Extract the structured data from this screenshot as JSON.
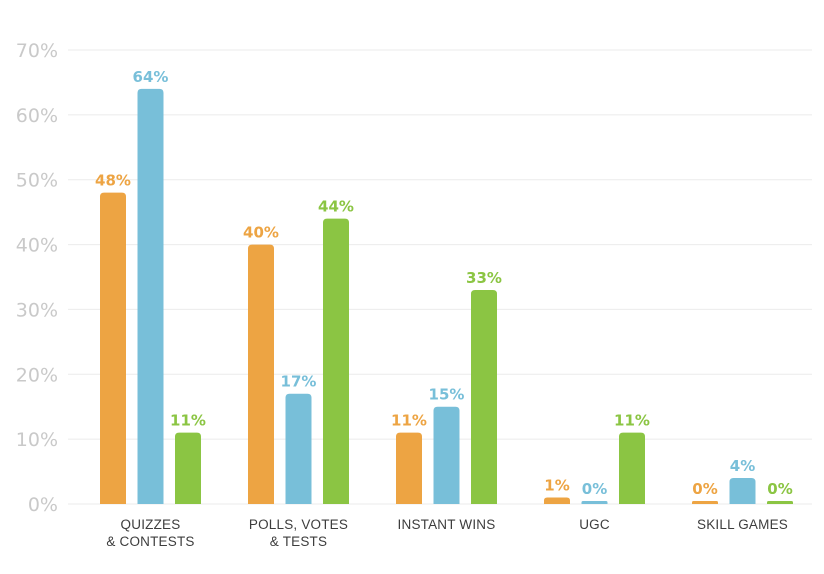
{
  "chart_data": {
    "type": "bar",
    "categories": [
      [
        "QUIZZES",
        "& CONTESTS"
      ],
      [
        "POLLS, VOTES",
        "& TESTS"
      ],
      [
        "INSTANT WINS"
      ],
      [
        "UGC"
      ],
      [
        "SKILL GAMES"
      ]
    ],
    "series": [
      {
        "color": "#eda443",
        "values": [
          48,
          40,
          11,
          1,
          0
        ],
        "labels": [
          "48%",
          "40%",
          "11%",
          "1%",
          "0%"
        ]
      },
      {
        "color": "#78bfd9",
        "values": [
          64,
          17,
          15,
          0,
          4
        ],
        "labels": [
          "64%",
          "17%",
          "15%",
          "0%",
          "4%"
        ]
      },
      {
        "color": "#8bc543",
        "values": [
          11,
          44,
          33,
          11,
          0
        ],
        "labels": [
          "11%",
          "44%",
          "33%",
          "11%",
          "0%"
        ]
      }
    ],
    "yticks": [
      "0%",
      "10%",
      "20%",
      "30%",
      "40%",
      "50%",
      "60%",
      "70%"
    ],
    "ylim": [
      0,
      70
    ],
    "grid": true,
    "title": "",
    "xlabel": "",
    "ylabel": ""
  }
}
